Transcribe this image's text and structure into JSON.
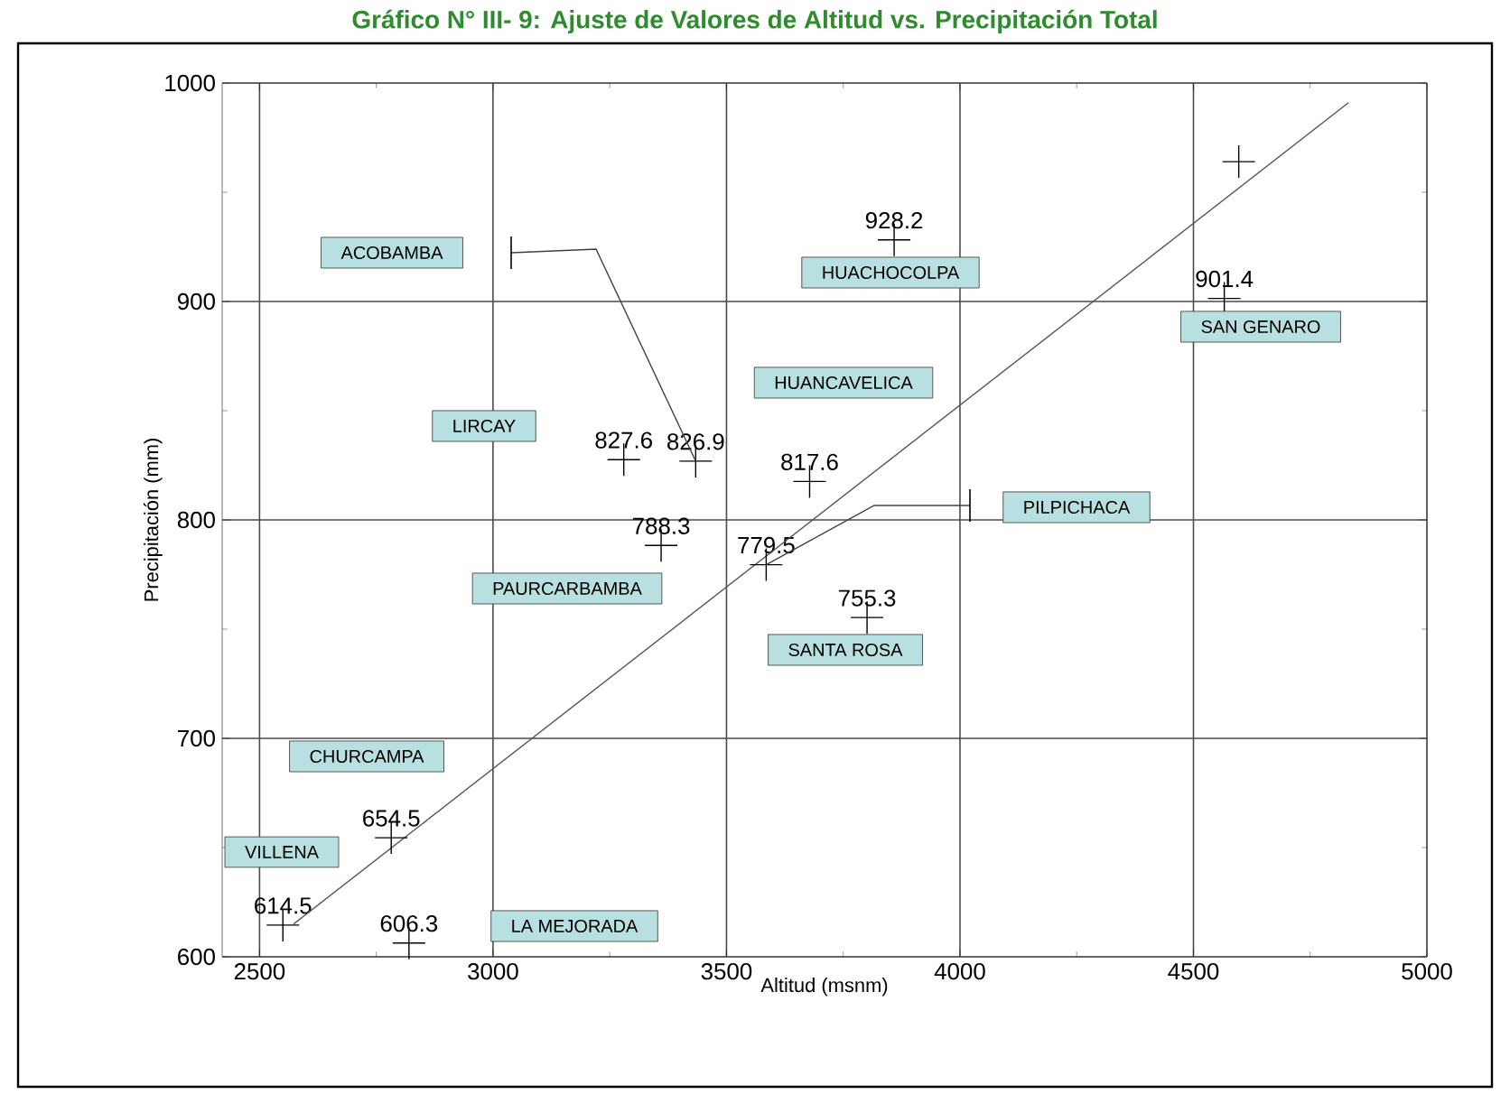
{
  "chart_data": {
    "type": "scatter",
    "title": "Gráfico N° III- 9: Ajuste de Valores de Altitud vs. Precipitación Total",
    "xlabel": "Altitud (msnm)",
    "ylabel": "Precipitación (mm)",
    "xlim": [
      2420,
      5000
    ],
    "ylim": [
      600,
      1000
    ],
    "xticks": [
      2500,
      3000,
      3500,
      4000,
      4500,
      5000
    ],
    "yticks": [
      600,
      700,
      800,
      900,
      1000
    ],
    "grid": true,
    "series": [
      {
        "color": "#000000",
        "marker": "cross",
        "x": [
          2550,
          2782,
          2820,
          3280,
          3434,
          3360,
          3585,
          3678,
          3801,
          3859,
          4566,
          4597
        ],
        "values": [
          614.5,
          654.5,
          606.3,
          827.6,
          826.9,
          788.3,
          779.5,
          817.6,
          755.3,
          928.2,
          901.4,
          964
        ],
        "value_labels": [
          "614.5",
          "654.5",
          "606.3",
          "827.6",
          "826.9",
          "788.3",
          "779.5",
          "817.6",
          "755.3",
          "928.2",
          "901.4",
          null
        ]
      },
      {
        "type": "line",
        "color": "#555555",
        "x": [
          2573,
          4832
        ],
        "values": [
          615,
          991
        ]
      }
    ],
    "annotations": [
      "ACOBAMBA",
      "LIRCAY",
      "HUANCAVELICA",
      "PAURCARBAMBA",
      "PILPICHACA",
      "SANTA ROSA",
      "HUACHOCOLPA",
      "SAN GENARO",
      "CHURCAMPA",
      "VILLENA",
      "LA MEJORADA"
    ]
  }
}
